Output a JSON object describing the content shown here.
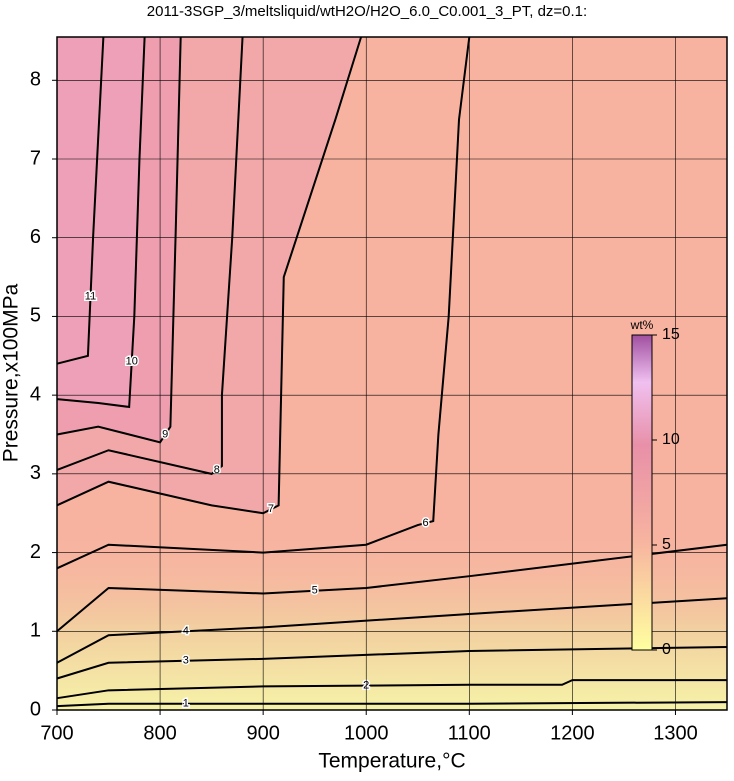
{
  "chart_data": {
    "type": "contour",
    "title": "2011-3SGP_3/meltsliquid/wtH2O/H2O_6.0_C0.001_3_PT, dz=0.1:",
    "x_label": "Temperature,°C",
    "y_label": "Pressure,x100MPa",
    "xlim": [
      700,
      1350
    ],
    "ylim": [
      0,
      8.55
    ],
    "xticks": [
      700,
      800,
      900,
      1000,
      1100,
      1200,
      1300
    ],
    "yticks": [
      0,
      1,
      2,
      3,
      4,
      5,
      6,
      7,
      8
    ],
    "grid": true,
    "contours": [
      {
        "level": 1,
        "x": [
          700,
          750,
          900,
          1100,
          1350
        ],
        "y": [
          0.05,
          0.08,
          0.08,
          0.08,
          0.1
        ]
      },
      {
        "level": 2,
        "x": [
          700,
          750,
          900,
          1100,
          1190,
          1200,
          1350
        ],
        "y": [
          0.15,
          0.25,
          0.3,
          0.32,
          0.32,
          0.38,
          0.38
        ]
      },
      {
        "level": 3,
        "x": [
          700,
          750,
          900,
          1100,
          1350
        ],
        "y": [
          0.4,
          0.6,
          0.65,
          0.75,
          0.8
        ]
      },
      {
        "level": 4,
        "x": [
          700,
          750,
          900,
          1100,
          1350
        ],
        "y": [
          0.6,
          0.95,
          1.05,
          1.22,
          1.42
        ]
      },
      {
        "level": 5,
        "x": [
          700,
          750,
          900,
          1000,
          1100,
          1350
        ],
        "y": [
          1.0,
          1.55,
          1.48,
          1.55,
          1.7,
          2.1
        ]
      },
      {
        "level": 6,
        "x": [
          700,
          750,
          900,
          1000,
          1050,
          1065,
          1070,
          1080,
          1090,
          1100
        ],
        "y": [
          1.8,
          2.1,
          2.0,
          2.1,
          2.35,
          2.4,
          3.5,
          5,
          7.5,
          8.55
        ]
      },
      {
        "level": 7,
        "x": [
          700,
          750,
          850,
          900,
          915,
          920,
          970,
          995
        ],
        "y": [
          2.6,
          2.9,
          2.6,
          2.5,
          2.6,
          5.5,
          7.5,
          8.55
        ]
      },
      {
        "level": 8,
        "x": [
          700,
          750,
          850,
          860,
          860,
          870,
          880
        ],
        "y": [
          3.05,
          3.3,
          3.0,
          3.1,
          4,
          6,
          8.55
        ]
      },
      {
        "level": 9,
        "x": [
          700,
          740,
          800,
          810,
          815,
          820
        ],
        "y": [
          3.5,
          3.6,
          3.4,
          3.6,
          6,
          8.55
        ]
      },
      {
        "level": 10,
        "x": [
          700,
          740,
          770,
          775,
          780,
          785
        ],
        "y": [
          3.95,
          3.9,
          3.85,
          5,
          7,
          8.55
        ]
      },
      {
        "level": 11,
        "x": [
          700,
          730,
          735,
          745
        ],
        "y": [
          4.4,
          4.5,
          6,
          8.55
        ]
      }
    ],
    "colorbar": {
      "label": "wt%",
      "lim": [
        0,
        15
      ],
      "ticks": [
        0,
        5,
        10,
        15
      ]
    }
  }
}
